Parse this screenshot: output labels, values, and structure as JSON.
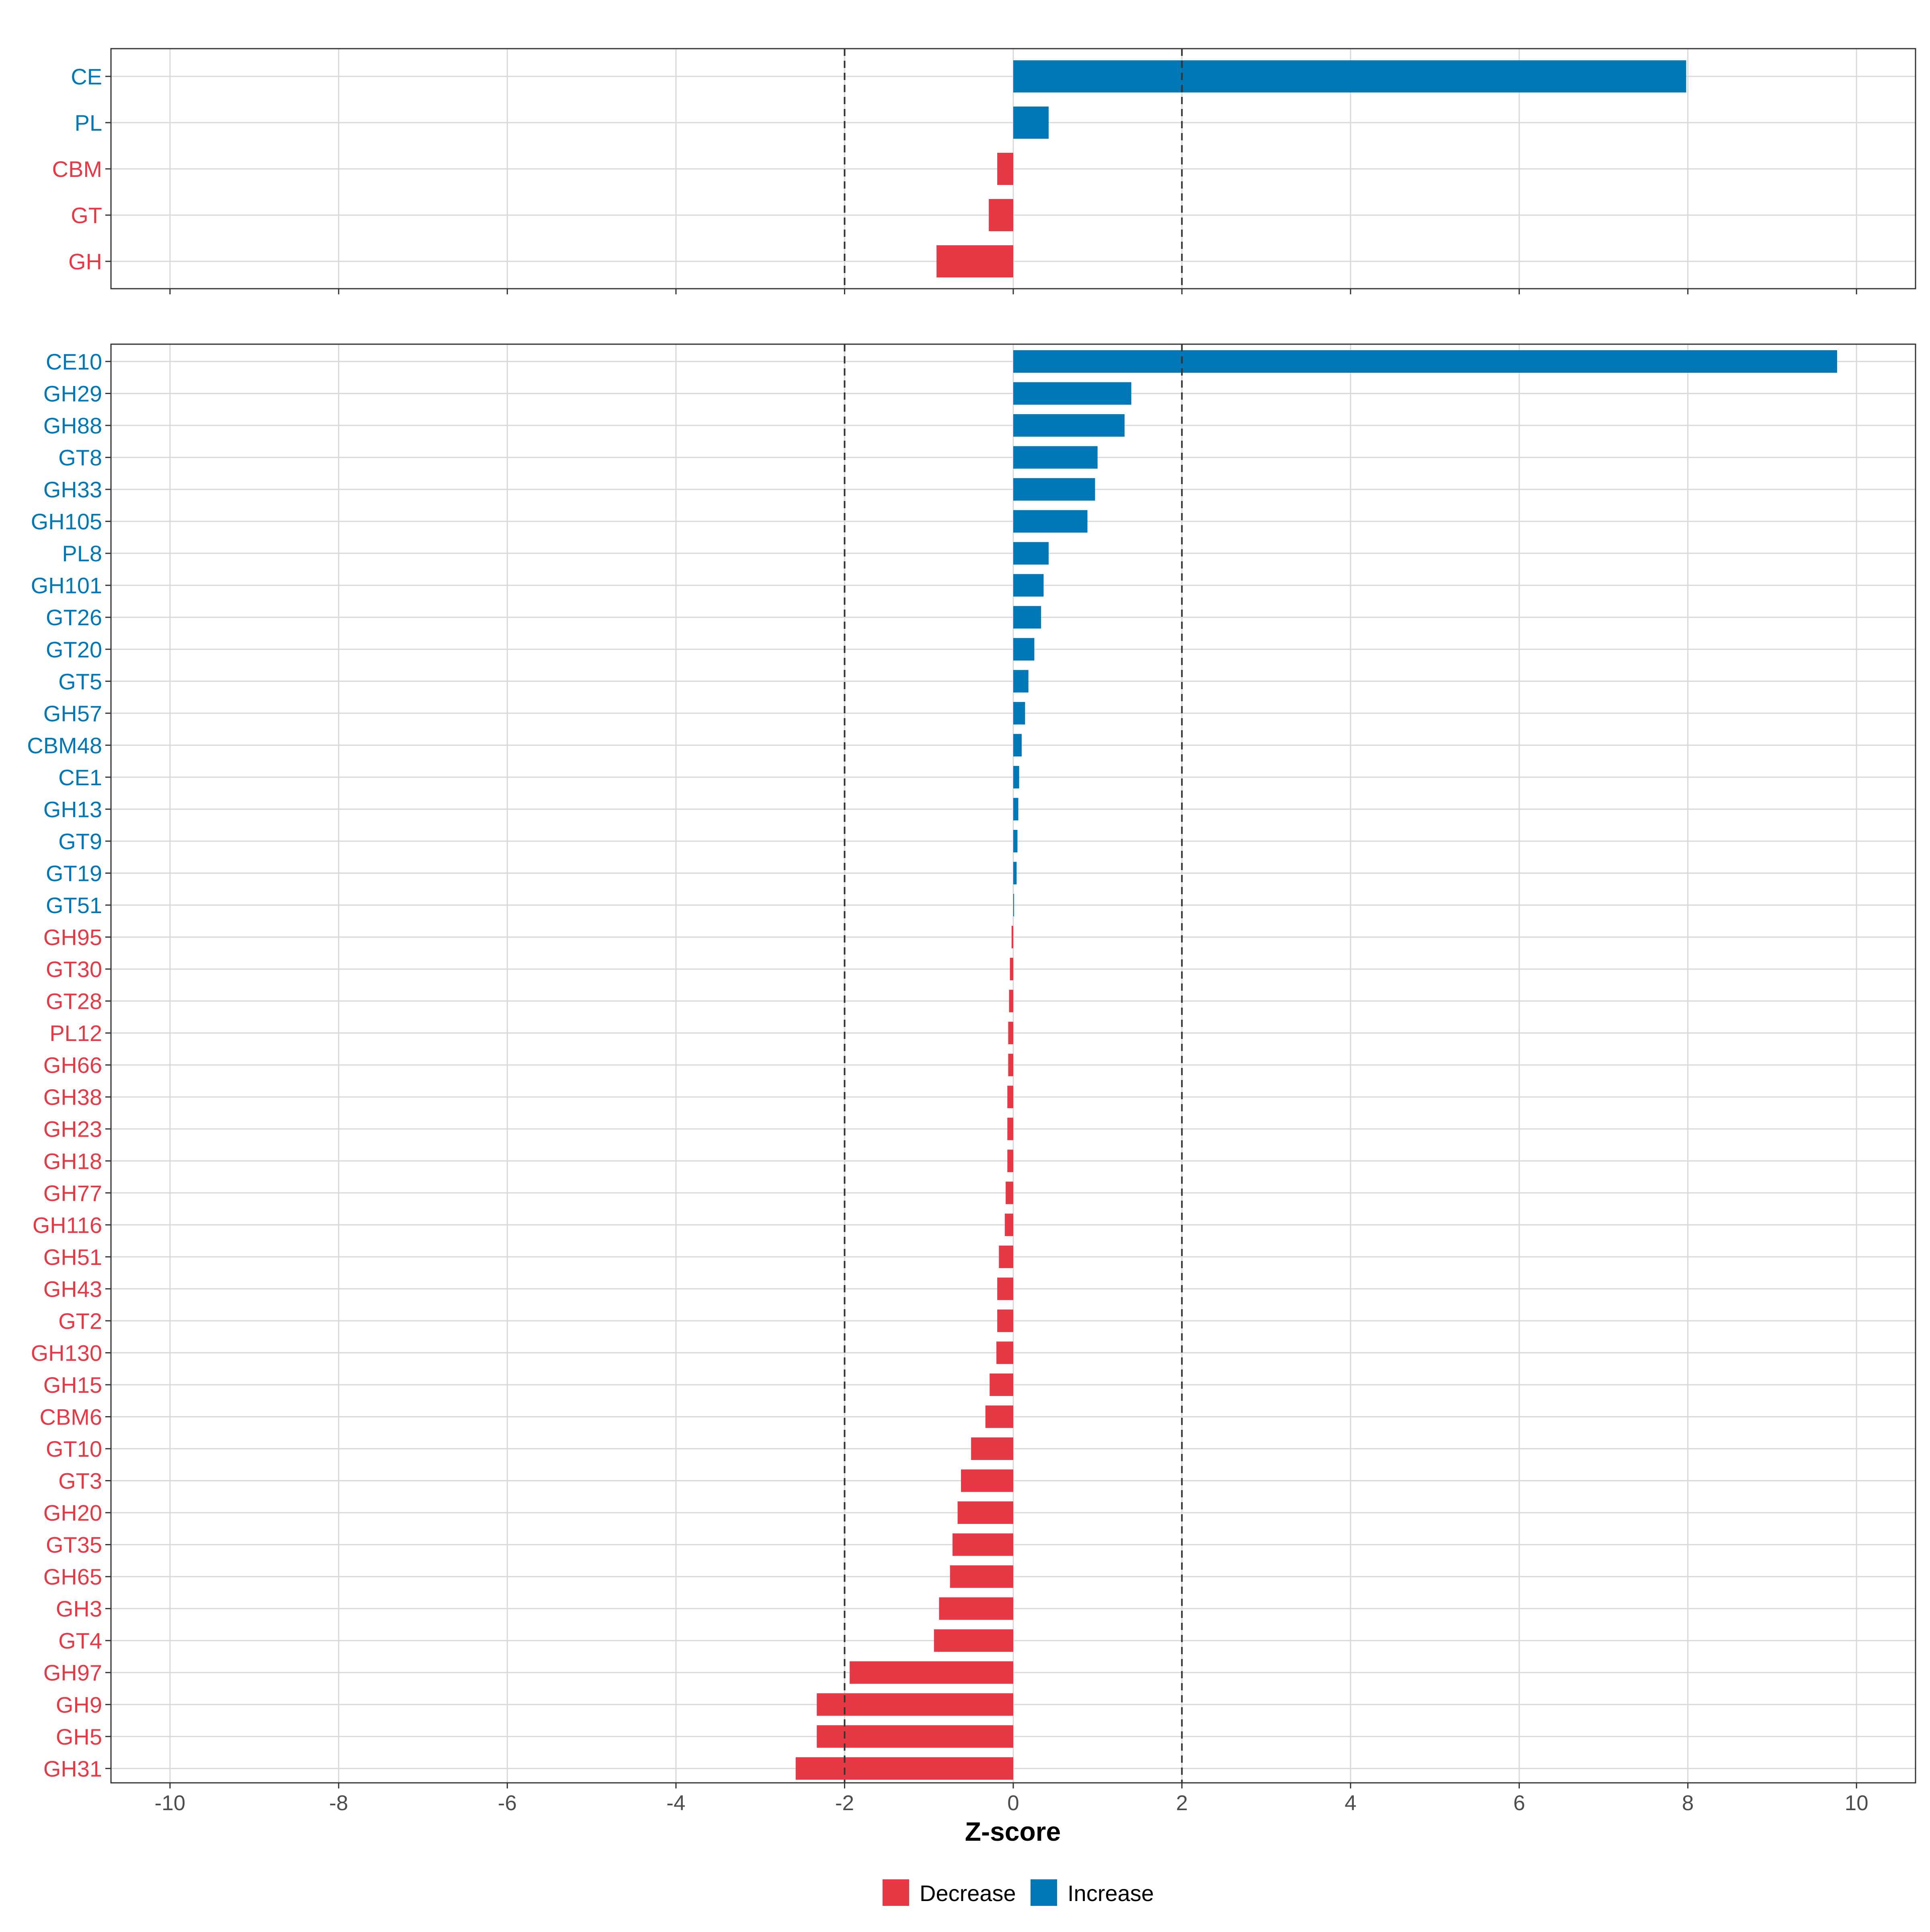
{
  "colors": {
    "Decrease": "#e63946",
    "Increase": "#0077b6",
    "grid": "#d9d9d9",
    "panel_border": "#333333",
    "threshold_line": "#333333"
  },
  "chart_data": [
    {
      "type": "bar",
      "orientation": "horizontal",
      "panel": "top",
      "categories": [
        "CE",
        "PL",
        "CBM",
        "GT",
        "GH"
      ],
      "values": [
        7.98,
        0.42,
        -0.19,
        -0.29,
        -0.91
      ],
      "groups": [
        "Increase",
        "Increase",
        "Decrease",
        "Decrease",
        "Decrease"
      ],
      "xlim": [
        -10.7,
        10.7
      ],
      "xticks": [
        -10,
        -8,
        -6,
        -4,
        -2,
        0,
        2,
        4,
        6,
        8,
        10
      ],
      "show_tick_labels": false,
      "threshold_lines": [
        -2,
        2
      ],
      "grid": true
    },
    {
      "type": "bar",
      "orientation": "horizontal",
      "panel": "bottom",
      "categories": [
        "CE10",
        "GH29",
        "GH88",
        "GT8",
        "GH33",
        "GH105",
        "PL8",
        "GH101",
        "GT26",
        "GT20",
        "GT5",
        "GH57",
        "CBM48",
        "CE1",
        "GH13",
        "GT9",
        "GT19",
        "GT51",
        "GH95",
        "GT30",
        "GT28",
        "PL12",
        "GH66",
        "GH38",
        "GH23",
        "GH18",
        "GH77",
        "GH116",
        "GH51",
        "GH43",
        "GT2",
        "GH130",
        "GH15",
        "CBM6",
        "GT10",
        "GT3",
        "GH20",
        "GT35",
        "GH65",
        "GH3",
        "GT4",
        "GH97",
        "GH9",
        "GH5",
        "GH31"
      ],
      "values": [
        9.77,
        1.4,
        1.32,
        1.0,
        0.97,
        0.88,
        0.42,
        0.36,
        0.33,
        0.25,
        0.18,
        0.14,
        0.1,
        0.07,
        0.06,
        0.05,
        0.04,
        0.01,
        -0.02,
        -0.04,
        -0.05,
        -0.06,
        -0.06,
        -0.07,
        -0.07,
        -0.07,
        -0.09,
        -0.1,
        -0.17,
        -0.19,
        -0.19,
        -0.2,
        -0.28,
        -0.33,
        -0.5,
        -0.62,
        -0.66,
        -0.72,
        -0.75,
        -0.88,
        -0.94,
        -1.94,
        -2.33,
        -2.33,
        -2.58
      ],
      "groups": [
        "Increase",
        "Increase",
        "Increase",
        "Increase",
        "Increase",
        "Increase",
        "Increase",
        "Increase",
        "Increase",
        "Increase",
        "Increase",
        "Increase",
        "Increase",
        "Increase",
        "Increase",
        "Increase",
        "Increase",
        "Increase",
        "Decrease",
        "Decrease",
        "Decrease",
        "Decrease",
        "Decrease",
        "Decrease",
        "Decrease",
        "Decrease",
        "Decrease",
        "Decrease",
        "Decrease",
        "Decrease",
        "Decrease",
        "Decrease",
        "Decrease",
        "Decrease",
        "Decrease",
        "Decrease",
        "Decrease",
        "Decrease",
        "Decrease",
        "Decrease",
        "Decrease",
        "Decrease",
        "Decrease",
        "Decrease",
        "Decrease"
      ],
      "xlim": [
        -10.7,
        10.7
      ],
      "xticks": [
        -10,
        -8,
        -6,
        -4,
        -2,
        0,
        2,
        4,
        6,
        8,
        10
      ],
      "show_tick_labels": true,
      "threshold_lines": [
        -2,
        2
      ],
      "grid": true
    }
  ],
  "axis": {
    "xlabel": "Z-score"
  },
  "legend": {
    "position": "bottom",
    "items": [
      {
        "label": "Decrease",
        "group": "Decrease"
      },
      {
        "label": "Increase",
        "group": "Increase"
      }
    ]
  }
}
